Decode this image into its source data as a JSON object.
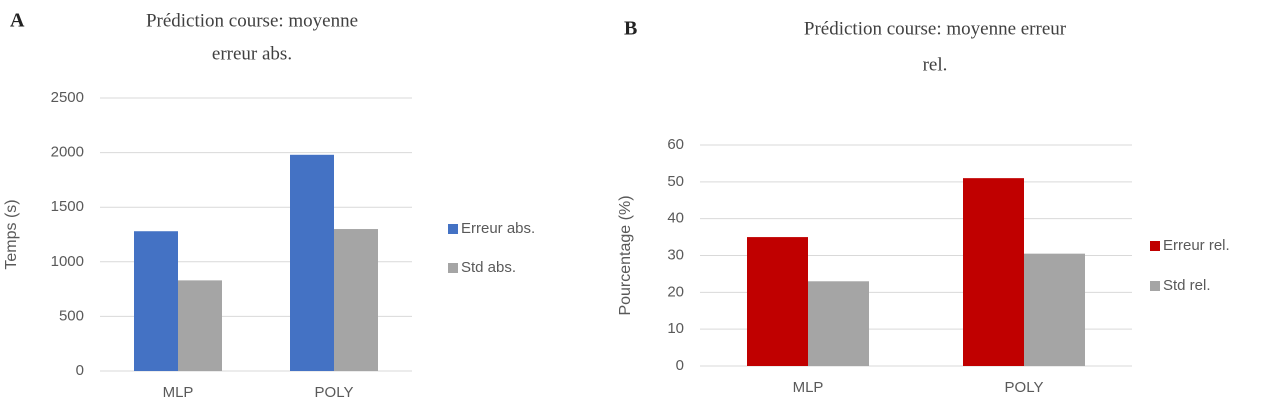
{
  "chart_data": [
    {
      "type": "bar",
      "label": "A",
      "title": [
        "Prédiction course: moyenne",
        "erreur abs."
      ],
      "ylabel": "Temps (s)",
      "categories": [
        "MLP",
        "POLY"
      ],
      "series": [
        {
          "name": "Erreur abs.",
          "color": "#4472c4",
          "values": [
            1280,
            1980
          ]
        },
        {
          "name": "Std abs.",
          "color": "#a5a5a5",
          "values": [
            830,
            1300
          ]
        }
      ],
      "ylim": [
        0,
        2500
      ],
      "yticks": [
        0,
        500,
        1000,
        1500,
        2000,
        2500
      ],
      "grid": true,
      "legend": "right"
    },
    {
      "type": "bar",
      "label": "B",
      "title": [
        "Prédiction course: moyenne erreur",
        "rel."
      ],
      "ylabel": "Pourcentage (%)",
      "categories": [
        "MLP",
        "POLY"
      ],
      "series": [
        {
          "name": "Erreur rel.",
          "color": "#c00000",
          "values": [
            35,
            51
          ]
        },
        {
          "name": "Std rel.",
          "color": "#a5a5a5",
          "values": [
            23,
            30.5
          ]
        }
      ],
      "ylim": [
        0,
        60
      ],
      "yticks": [
        0,
        10,
        20,
        30,
        40,
        50,
        60
      ],
      "grid": true,
      "legend": "right"
    }
  ]
}
